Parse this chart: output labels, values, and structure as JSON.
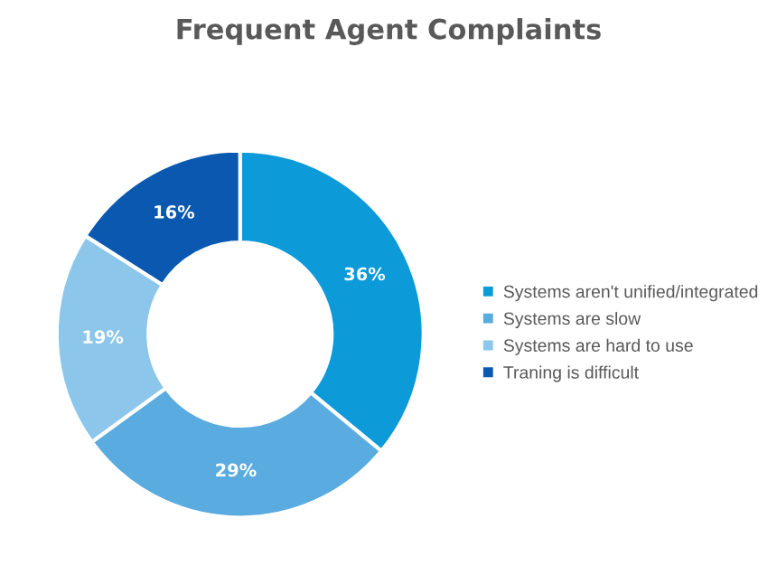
{
  "chart_data": {
    "type": "donut",
    "title": "Frequent Agent Complaints",
    "categories": [
      "Systems aren't unified/integrated",
      "Systems are slow",
      "Systems are hard to use",
      "Traning is difficult"
    ],
    "values": [
      36,
      29,
      19,
      16
    ],
    "colors": [
      "#0c9ad8",
      "#5aabdf",
      "#8cc6ea",
      "#0a58b0"
    ],
    "value_labels": [
      "36%",
      "29%",
      "19%",
      "16%"
    ],
    "legend": "right"
  }
}
